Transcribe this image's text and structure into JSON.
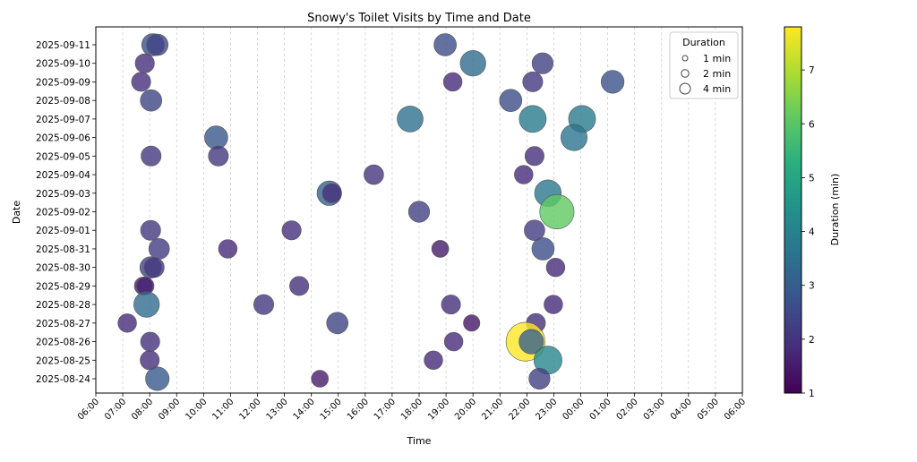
{
  "chart_data": {
    "type": "scatter",
    "title": "Snowy's Toilet Visits by Time and Date",
    "xlabel": "Time",
    "ylabel": "Date",
    "x_ticks": [
      "06:00",
      "07:00",
      "08:00",
      "09:00",
      "10:00",
      "11:00",
      "12:00",
      "13:00",
      "14:00",
      "15:00",
      "16:00",
      "17:00",
      "18:00",
      "19:00",
      "20:00",
      "21:00",
      "22:00",
      "23:00",
      "00:00",
      "01:00",
      "02:00",
      "03:00",
      "04:00",
      "05:00",
      "06:00"
    ],
    "y_categories": [
      "2025-08-24",
      "2025-08-25",
      "2025-08-26",
      "2025-08-27",
      "2025-08-28",
      "2025-08-29",
      "2025-08-30",
      "2025-08-31",
      "2025-09-01",
      "2025-09-02",
      "2025-09-03",
      "2025-09-04",
      "2025-09-05",
      "2025-09-06",
      "2025-09-07",
      "2025-09-08",
      "2025-09-09",
      "2025-09-10",
      "2025-09-11"
    ],
    "x_grid": true,
    "y_grid": false,
    "colorbar": {
      "label": "Duration (min)",
      "colormap": "viridis",
      "range": [
        1,
        7.8
      ],
      "ticks": [
        "1",
        "2",
        "3",
        "4",
        "5",
        "6",
        "7"
      ]
    },
    "size_legend": {
      "title": "Duration",
      "placement": "top-right",
      "entries": [
        {
          "label": "1 min",
          "value": 1
        },
        {
          "label": "2 min",
          "value": 2
        },
        {
          "label": "4 min",
          "value": 4
        }
      ]
    },
    "points": [
      {
        "date": "2025-09-11",
        "time": "08:07",
        "duration": 2.6
      },
      {
        "date": "2025-09-11",
        "time": "08:17",
        "duration": 2.4
      },
      {
        "date": "2025-09-11",
        "time": "18:58",
        "duration": 2.6
      },
      {
        "date": "2025-09-10",
        "time": "07:49",
        "duration": 1.9
      },
      {
        "date": "2025-09-10",
        "time": "20:00",
        "duration": 3.4
      },
      {
        "date": "2025-09-10",
        "time": "22:35",
        "duration": 2.3
      },
      {
        "date": "2025-09-09",
        "time": "07:41",
        "duration": 1.9
      },
      {
        "date": "2025-09-09",
        "time": "19:15",
        "duration": 1.8
      },
      {
        "date": "2025-09-09",
        "time": "22:13",
        "duration": 2.1
      },
      {
        "date": "2025-09-09",
        "time": "01:11",
        "duration": 2.7
      },
      {
        "date": "2025-09-08",
        "time": "08:03",
        "duration": 2.4
      },
      {
        "date": "2025-09-08",
        "time": "21:24",
        "duration": 2.6
      },
      {
        "date": "2025-09-07",
        "time": "17:40",
        "duration": 3.5
      },
      {
        "date": "2025-09-07",
        "time": "22:13",
        "duration": 3.8
      },
      {
        "date": "2025-09-07",
        "time": "00:03",
        "duration": 3.8
      },
      {
        "date": "2025-09-06",
        "time": "10:28",
        "duration": 2.8
      },
      {
        "date": "2025-09-06",
        "time": "23:45",
        "duration": 3.6
      },
      {
        "date": "2025-09-05",
        "time": "08:03",
        "duration": 2.1
      },
      {
        "date": "2025-09-05",
        "time": "10:33",
        "duration": 2.1
      },
      {
        "date": "2025-09-05",
        "time": "22:17",
        "duration": 1.9
      },
      {
        "date": "2025-09-04",
        "time": "16:19",
        "duration": 2.0
      },
      {
        "date": "2025-09-04",
        "time": "21:53",
        "duration": 1.8
      },
      {
        "date": "2025-09-03",
        "time": "14:40",
        "duration": 3.1
      },
      {
        "date": "2025-09-03",
        "time": "14:46",
        "duration": 1.9
      },
      {
        "date": "2025-09-03",
        "time": "22:47",
        "duration": 3.7
      },
      {
        "date": "2025-09-02",
        "time": "18:00",
        "duration": 2.3
      },
      {
        "date": "2025-09-02",
        "time": "23:07",
        "duration": 6.1
      },
      {
        "date": "2025-09-01",
        "time": "08:02",
        "duration": 2.1
      },
      {
        "date": "2025-09-01",
        "time": "13:16",
        "duration": 1.9
      },
      {
        "date": "2025-09-01",
        "time": "22:17",
        "duration": 2.2
      },
      {
        "date": "2025-08-31",
        "time": "08:21",
        "duration": 2.2
      },
      {
        "date": "2025-08-31",
        "time": "10:54",
        "duration": 1.8
      },
      {
        "date": "2025-08-31",
        "time": "18:47",
        "duration": 1.5
      },
      {
        "date": "2025-08-31",
        "time": "22:36",
        "duration": 2.6
      },
      {
        "date": "2025-08-30",
        "time": "08:02",
        "duration": 2.4
      },
      {
        "date": "2025-08-30",
        "time": "08:10",
        "duration": 2.1
      },
      {
        "date": "2025-08-30",
        "time": "23:04",
        "duration": 1.8
      },
      {
        "date": "2025-08-29",
        "time": "07:46",
        "duration": 1.7
      },
      {
        "date": "2025-08-29",
        "time": "07:50",
        "duration": 1.6
      },
      {
        "date": "2025-08-29",
        "time": "13:33",
        "duration": 1.9
      },
      {
        "date": "2025-08-28",
        "time": "07:53",
        "duration": 3.4
      },
      {
        "date": "2025-08-28",
        "time": "12:14",
        "duration": 2.1
      },
      {
        "date": "2025-08-28",
        "time": "19:11",
        "duration": 1.9
      },
      {
        "date": "2025-08-28",
        "time": "22:59",
        "duration": 1.8
      },
      {
        "date": "2025-08-27",
        "time": "07:10",
        "duration": 1.8
      },
      {
        "date": "2025-08-27",
        "time": "14:58",
        "duration": 2.4
      },
      {
        "date": "2025-08-27",
        "time": "19:57",
        "duration": 1.4
      },
      {
        "date": "2025-08-27",
        "time": "22:20",
        "duration": 1.9
      },
      {
        "date": "2025-08-26",
        "time": "08:01",
        "duration": 1.9
      },
      {
        "date": "2025-08-26",
        "time": "19:17",
        "duration": 1.8
      },
      {
        "date": "2025-08-26",
        "time": "21:57",
        "duration": 7.8
      },
      {
        "date": "2025-08-26",
        "time": "22:10",
        "duration": 3.1
      },
      {
        "date": "2025-08-25",
        "time": "08:00",
        "duration": 1.9
      },
      {
        "date": "2025-08-25",
        "time": "18:32",
        "duration": 1.8
      },
      {
        "date": "2025-08-25",
        "time": "22:47",
        "duration": 4.1
      },
      {
        "date": "2025-08-24",
        "time": "08:17",
        "duration": 2.9
      },
      {
        "date": "2025-08-24",
        "time": "14:19",
        "duration": 1.5
      },
      {
        "date": "2025-08-24",
        "time": "22:28",
        "duration": 2.3
      }
    ]
  }
}
